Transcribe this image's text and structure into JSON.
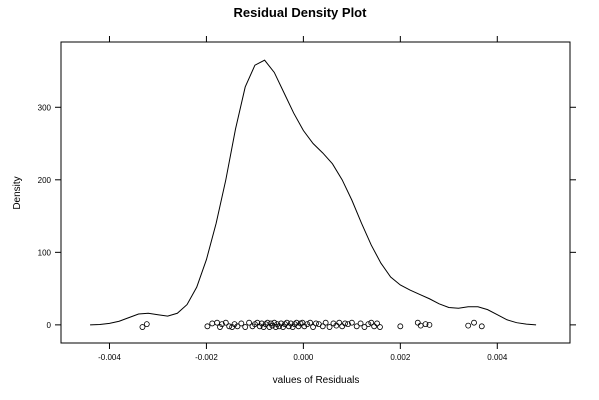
{
  "chart_data": {
    "type": "line",
    "title": "Residual Density Plot",
    "xlabel": "values of Residuals",
    "ylabel": "Density",
    "xlim": [
      -0.005,
      0.0055
    ],
    "ylim": [
      -25,
      390
    ],
    "x_ticks": [
      -0.004,
      -0.002,
      0.0,
      0.002,
      0.004
    ],
    "x_tick_labels": [
      "-0.004",
      "-0.002",
      "0.000",
      "0.002",
      "0.004"
    ],
    "y_ticks": [
      0,
      100,
      200,
      300
    ],
    "y_tick_labels": [
      "0",
      "100",
      "200",
      "300"
    ],
    "grid": false,
    "series": [
      {
        "x": [
          -0.0044,
          -0.0042,
          -0.004,
          -0.0038,
          -0.0036,
          -0.0034,
          -0.0032,
          -0.003,
          -0.0028,
          -0.0026,
          -0.0024,
          -0.0022,
          -0.002,
          -0.0018,
          -0.0016,
          -0.0014,
          -0.0012,
          -0.001,
          -0.0008,
          -0.0006,
          -0.0004,
          -0.0002,
          0.0,
          0.0002,
          0.0004,
          0.0006,
          0.0008,
          0.001,
          0.0012,
          0.0014,
          0.0016,
          0.0018,
          0.002,
          0.0022,
          0.0024,
          0.0026,
          0.0028,
          0.003,
          0.0032,
          0.0034,
          0.0036,
          0.0038,
          0.004,
          0.0042,
          0.0044,
          0.0046,
          0.0048
        ],
        "y": [
          0,
          0.5,
          2,
          5,
          10,
          15,
          16,
          14,
          12,
          16,
          28,
          52,
          90,
          140,
          200,
          270,
          328,
          358,
          365,
          348,
          320,
          292,
          268,
          250,
          237,
          222,
          200,
          172,
          140,
          110,
          85,
          66,
          55,
          48,
          42,
          36,
          29,
          24,
          23,
          25,
          25,
          21,
          14,
          7,
          3,
          1,
          0
        ]
      }
    ],
    "rug_points": [
      {
        "x": -0.00323,
        "y": 1
      },
      {
        "x": -0.00332,
        "y": -3
      },
      {
        "x": -0.00198,
        "y": -2
      },
      {
        "x": -0.00188,
        "y": 2
      },
      {
        "x": -0.00178,
        "y": 3
      },
      {
        "x": -0.00172,
        "y": -3
      },
      {
        "x": -0.00168,
        "y": 1
      },
      {
        "x": -0.0016,
        "y": 3
      },
      {
        "x": -0.00153,
        "y": -2
      },
      {
        "x": -0.00147,
        "y": -3
      },
      {
        "x": -0.00142,
        "y": 1
      },
      {
        "x": -0.00136,
        "y": -2
      },
      {
        "x": -0.00128,
        "y": 2
      },
      {
        "x": -0.0012,
        "y": -3
      },
      {
        "x": -0.00112,
        "y": 3
      },
      {
        "x": -0.00105,
        "y": -2
      },
      {
        "x": -0.001,
        "y": 1
      },
      {
        "x": -0.00095,
        "y": 3
      },
      {
        "x": -0.0009,
        "y": -2
      },
      {
        "x": -0.00086,
        "y": 2
      },
      {
        "x": -0.00082,
        "y": -3
      },
      {
        "x": -0.00078,
        "y": 1
      },
      {
        "x": -0.00074,
        "y": 3
      },
      {
        "x": -0.0007,
        "y": -3
      },
      {
        "x": -0.00067,
        "y": 2
      },
      {
        "x": -0.00064,
        "y": -1
      },
      {
        "x": -0.0006,
        "y": 3
      },
      {
        "x": -0.00057,
        "y": -3
      },
      {
        "x": -0.00054,
        "y": 1
      },
      {
        "x": -0.0005,
        "y": -2
      },
      {
        "x": -0.00046,
        "y": 2
      },
      {
        "x": -0.00042,
        "y": -3
      },
      {
        "x": -0.00038,
        "y": 1
      },
      {
        "x": -0.00034,
        "y": 3
      },
      {
        "x": -0.0003,
        "y": -2
      },
      {
        "x": -0.00026,
        "y": 2
      },
      {
        "x": -0.00022,
        "y": -3
      },
      {
        "x": -0.00018,
        "y": 1
      },
      {
        "x": -0.00014,
        "y": 3
      },
      {
        "x": -0.0001,
        "y": -2
      },
      {
        "x": -6e-05,
        "y": 2
      },
      {
        "x": -2e-05,
        "y": 3
      },
      {
        "x": 2e-05,
        "y": -2
      },
      {
        "x": 8e-05,
        "y": 1
      },
      {
        "x": 0.00014,
        "y": 3
      },
      {
        "x": 0.0002,
        "y": -3
      },
      {
        "x": 0.00026,
        "y": 2
      },
      {
        "x": 0.00032,
        "y": 1
      },
      {
        "x": 0.0004,
        "y": -2
      },
      {
        "x": 0.00046,
        "y": 3
      },
      {
        "x": 0.00054,
        "y": -3
      },
      {
        "x": 0.00062,
        "y": 2
      },
      {
        "x": 0.00068,
        "y": -1
      },
      {
        "x": 0.00074,
        "y": 3
      },
      {
        "x": 0.0008,
        "y": -2
      },
      {
        "x": 0.00086,
        "y": 2
      },
      {
        "x": 0.00092,
        "y": 1
      },
      {
        "x": 0.001,
        "y": 3
      },
      {
        "x": 0.0011,
        "y": -2
      },
      {
        "x": 0.00118,
        "y": 2
      },
      {
        "x": 0.00126,
        "y": -3
      },
      {
        "x": 0.00134,
        "y": 1
      },
      {
        "x": 0.0014,
        "y": 3
      },
      {
        "x": 0.00146,
        "y": -2
      },
      {
        "x": 0.00152,
        "y": 2
      },
      {
        "x": 0.00158,
        "y": -3
      },
      {
        "x": 0.002,
        "y": -2
      },
      {
        "x": 0.00236,
        "y": 3
      },
      {
        "x": 0.00242,
        "y": -1
      },
      {
        "x": 0.00252,
        "y": 1
      },
      {
        "x": 0.0026,
        "y": 0
      },
      {
        "x": 0.0034,
        "y": -1
      },
      {
        "x": 0.00352,
        "y": 3
      },
      {
        "x": 0.00368,
        "y": -2
      }
    ]
  }
}
